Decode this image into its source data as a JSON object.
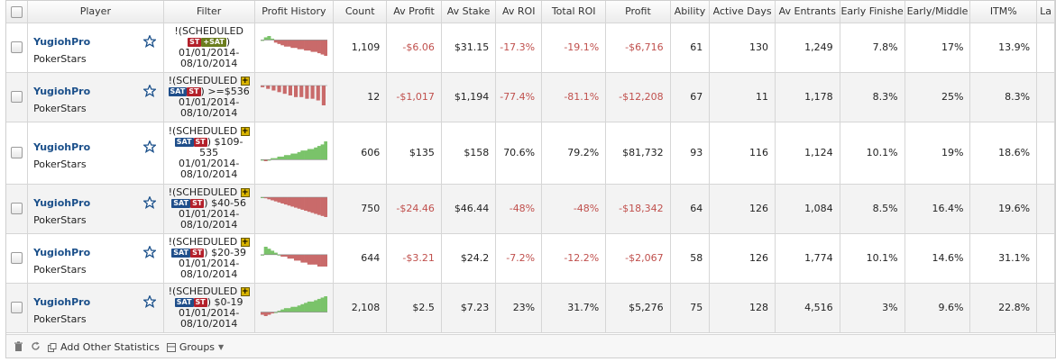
{
  "columns": [
    {
      "key": "checkbox",
      "label": ""
    },
    {
      "key": "player",
      "label": "Player"
    },
    {
      "key": "filter",
      "label": "Filter"
    },
    {
      "key": "profit_history",
      "label": "Profit History"
    },
    {
      "key": "count",
      "label": "Count"
    },
    {
      "key": "av_profit",
      "label": "Av Profit"
    },
    {
      "key": "av_stake",
      "label": "Av Stake"
    },
    {
      "key": "av_roi",
      "label": "Av ROI"
    },
    {
      "key": "total_roi",
      "label": "Total ROI"
    },
    {
      "key": "profit",
      "label": "Profit"
    },
    {
      "key": "ability",
      "label": "Ability"
    },
    {
      "key": "active_days",
      "label": "Active Days"
    },
    {
      "key": "av_entrants",
      "label": "Av Entrants"
    },
    {
      "key": "early_finish",
      "label": "Early Finishe"
    },
    {
      "key": "early_middle",
      "label": "Early/Middle"
    },
    {
      "key": "itm",
      "label": "ITM%"
    },
    {
      "key": "late",
      "label": "La"
    }
  ],
  "colors": {
    "negative": "#c0504d",
    "sparkline_positive": "#7ac36a",
    "sparkline_negative": "#c96a6a",
    "player_link": "#1a4f8a"
  },
  "rows": [
    {
      "player": "YugiohPro",
      "site": "PokerStars",
      "filter_prefix": "!(SCHEDULED",
      "badges": [
        "ST",
        "+SAT"
      ],
      "filter_suffix": ")",
      "filter_range": "",
      "date_from": "01/01/2014-",
      "date_to": "08/10/2014",
      "spark": [
        0,
        2,
        3,
        1,
        -2,
        -3,
        -4,
        -5,
        -5,
        -6,
        -6,
        -7,
        -7,
        -8,
        -8,
        -9,
        -9,
        -10,
        -11,
        -12
      ],
      "spark_style": "line",
      "count": "1,109",
      "av_profit": "-$6.06",
      "av_stake": "$31.15",
      "av_roi": "-17.3%",
      "total_roi": "-19.1%",
      "profit": "-$6,716",
      "ability": "61",
      "active_days": "130",
      "av_entrants": "1,249",
      "early_finish": "7.8%",
      "early_middle": "17%",
      "itm": "13.9%",
      "neg": {
        "av_profit": true,
        "av_roi": true,
        "total_roi": true,
        "profit": true
      }
    },
    {
      "player": "YugiohPro",
      "site": "PokerStars",
      "filter_prefix": "!(SCHEDULED",
      "badges": [
        "+"
      ],
      "filter_suffix": "",
      "filter_range": "SAT|ST) >=$536",
      "date_from": "01/01/2014-",
      "date_to": "08/10/2014",
      "spark": [
        -1,
        -2,
        -3,
        -4,
        -5,
        -6,
        -7,
        -7,
        -8,
        -8,
        -9,
        -12
      ],
      "spark_style": "bars",
      "count": "12",
      "av_profit": "-$1,017",
      "av_stake": "$1,194",
      "av_roi": "-77.4%",
      "total_roi": "-81.1%",
      "profit": "-$12,208",
      "ability": "67",
      "active_days": "11",
      "av_entrants": "1,178",
      "early_finish": "8.3%",
      "early_middle": "25%",
      "itm": "8.3%",
      "neg": {
        "av_profit": true,
        "av_roi": true,
        "total_roi": true,
        "profit": true
      }
    },
    {
      "player": "YugiohPro",
      "site": "PokerStars",
      "filter_prefix": "!(SCHEDULED",
      "badges": [
        "+"
      ],
      "filter_suffix": "",
      "filter_range": "SAT|ST) $109-535",
      "date_from": "01/01/2014-",
      "date_to": "08/10/2014",
      "spark": [
        0,
        -1,
        0,
        1,
        1,
        2,
        2,
        3,
        3,
        4,
        4,
        5,
        6,
        6,
        7,
        7,
        8,
        9,
        10,
        12
      ],
      "spark_style": "line",
      "count": "606",
      "av_profit": "$135",
      "av_stake": "$158",
      "av_roi": "70.6%",
      "total_roi": "79.2%",
      "profit": "$81,732",
      "ability": "93",
      "active_days": "116",
      "av_entrants": "1,124",
      "early_finish": "10.1%",
      "early_middle": "19%",
      "itm": "18.6%",
      "neg": {}
    },
    {
      "player": "YugiohPro",
      "site": "PokerStars",
      "filter_prefix": "!(SCHEDULED",
      "badges": [
        "+"
      ],
      "filter_suffix": "",
      "filter_range": "SAT|ST) $40-56",
      "date_from": "01/01/2014-",
      "date_to": "08/10/2014",
      "spark": [
        0,
        -1,
        -2,
        -3,
        -4,
        -5,
        -6,
        -7,
        -8,
        -9,
        -10,
        -11,
        -12,
        -13,
        -14,
        -15,
        -16,
        -17,
        -18,
        -19
      ],
      "spark_style": "line",
      "count": "750",
      "av_profit": "-$24.46",
      "av_stake": "$46.44",
      "av_roi": "-48%",
      "total_roi": "-48%",
      "profit": "-$18,342",
      "ability": "64",
      "active_days": "126",
      "av_entrants": "1,084",
      "early_finish": "8.5%",
      "early_middle": "16.4%",
      "itm": "19.6%",
      "neg": {
        "av_profit": true,
        "av_roi": true,
        "total_roi": true,
        "profit": true
      }
    },
    {
      "player": "YugiohPro",
      "site": "PokerStars",
      "filter_prefix": "!(SCHEDULED",
      "badges": [
        "+"
      ],
      "filter_suffix": "",
      "filter_range": "SAT|ST) $20-39",
      "date_from": "01/01/2014-",
      "date_to": "08/10/2014",
      "spark": [
        0,
        4,
        3,
        2,
        1,
        0,
        -1,
        -1,
        -2,
        -2,
        -3,
        -3,
        -4,
        -4,
        -5,
        -5,
        -5,
        -6,
        -6,
        -6
      ],
      "spark_style": "line",
      "count": "644",
      "av_profit": "-$3.21",
      "av_stake": "$24.2",
      "av_roi": "-7.2%",
      "total_roi": "-12.2%",
      "profit": "-$2,067",
      "ability": "58",
      "active_days": "126",
      "av_entrants": "1,774",
      "early_finish": "10.1%",
      "early_middle": "14.6%",
      "itm": "31.1%",
      "neg": {
        "av_profit": true,
        "av_roi": true,
        "total_roi": true,
        "profit": true
      }
    },
    {
      "player": "YugiohPro",
      "site": "PokerStars",
      "filter_prefix": "!(SCHEDULED",
      "badges": [
        "+"
      ],
      "filter_suffix": "",
      "filter_range": "SAT|ST) $0-19",
      "date_from": "01/01/2014-",
      "date_to": "08/10/2014",
      "spark": [
        -2,
        -3,
        -2,
        -1,
        0,
        1,
        2,
        3,
        3,
        4,
        4,
        5,
        6,
        7,
        8,
        8,
        9,
        10,
        11,
        12
      ],
      "spark_style": "line",
      "count": "2,108",
      "av_profit": "$2.5",
      "av_stake": "$7.23",
      "av_roi": "23%",
      "total_roi": "31.7%",
      "profit": "$5,276",
      "ability": "75",
      "active_days": "128",
      "av_entrants": "4,516",
      "early_finish": "3%",
      "early_middle": "9.6%",
      "itm": "22.8%",
      "neg": {}
    }
  ],
  "footer": {
    "trash_icon": "trash-icon",
    "refresh_icon": "refresh-icon",
    "add_stats_label": "Add Other Statistics",
    "groups_label": "Groups"
  }
}
